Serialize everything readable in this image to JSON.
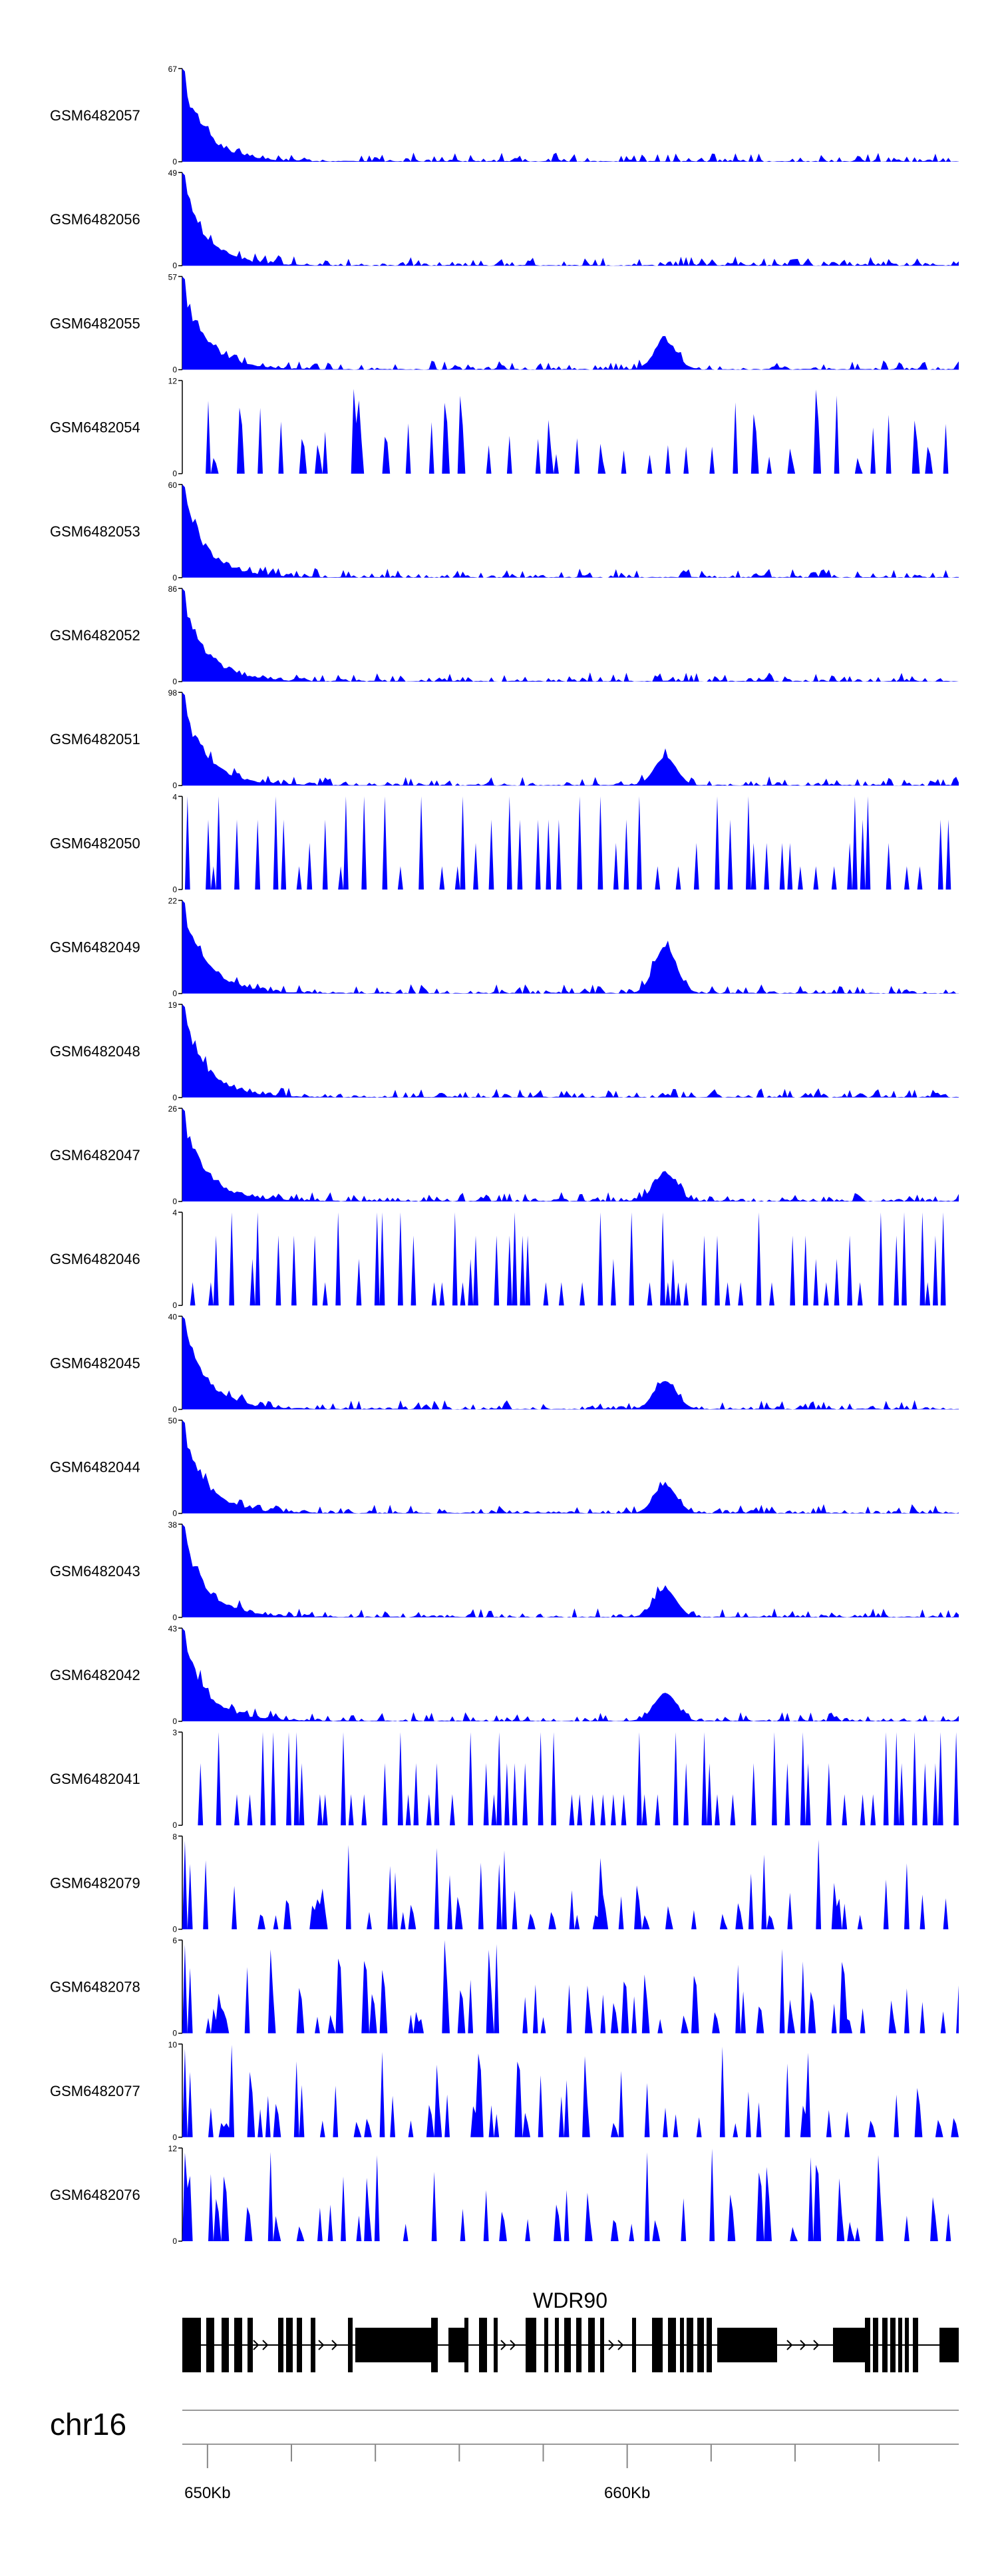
{
  "chart_data": {
    "type": "area",
    "color": "#0000FF",
    "region": {
      "chrom": "chr16",
      "start_kb": 649.4,
      "end_kb": 667.9
    },
    "tracks": [
      {
        "name": "GSM6482057",
        "max": 67
      },
      {
        "name": "GSM6482056",
        "max": 49
      },
      {
        "name": "GSM6482055",
        "max": 57
      },
      {
        "name": "GSM6482054",
        "max": 12
      },
      {
        "name": "GSM6482053",
        "max": 60
      },
      {
        "name": "GSM6482052",
        "max": 86
      },
      {
        "name": "GSM6482051",
        "max": 98
      },
      {
        "name": "GSM6482050",
        "max": 4
      },
      {
        "name": "GSM6482049",
        "max": 22
      },
      {
        "name": "GSM6482048",
        "max": 19
      },
      {
        "name": "GSM6482047",
        "max": 26
      },
      {
        "name": "GSM6482046",
        "max": 4
      },
      {
        "name": "GSM6482045",
        "max": 40
      },
      {
        "name": "GSM6482044",
        "max": 50
      },
      {
        "name": "GSM6482043",
        "max": 38
      },
      {
        "name": "GSM6482042",
        "max": 43
      },
      {
        "name": "GSM6482041",
        "max": 3
      },
      {
        "name": "GSM6482079",
        "max": 8
      },
      {
        "name": "GSM6482078",
        "max": 6
      },
      {
        "name": "GSM6482077",
        "max": 10
      },
      {
        "name": "GSM6482076",
        "max": 12
      }
    ],
    "y_min": 0,
    "gene": {
      "name": "WDR90",
      "start_kb": 649.4,
      "end_kb": 667.9,
      "strand": "+"
    },
    "chrom_label": "chr16",
    "x_ticks_kb": [
      650,
      652,
      654,
      656,
      658,
      660,
      662,
      664,
      666
    ],
    "x_tick_labels": [
      {
        "kb": 650,
        "label": "650Kb"
      },
      {
        "kb": 660,
        "label": "660Kb"
      }
    ]
  }
}
